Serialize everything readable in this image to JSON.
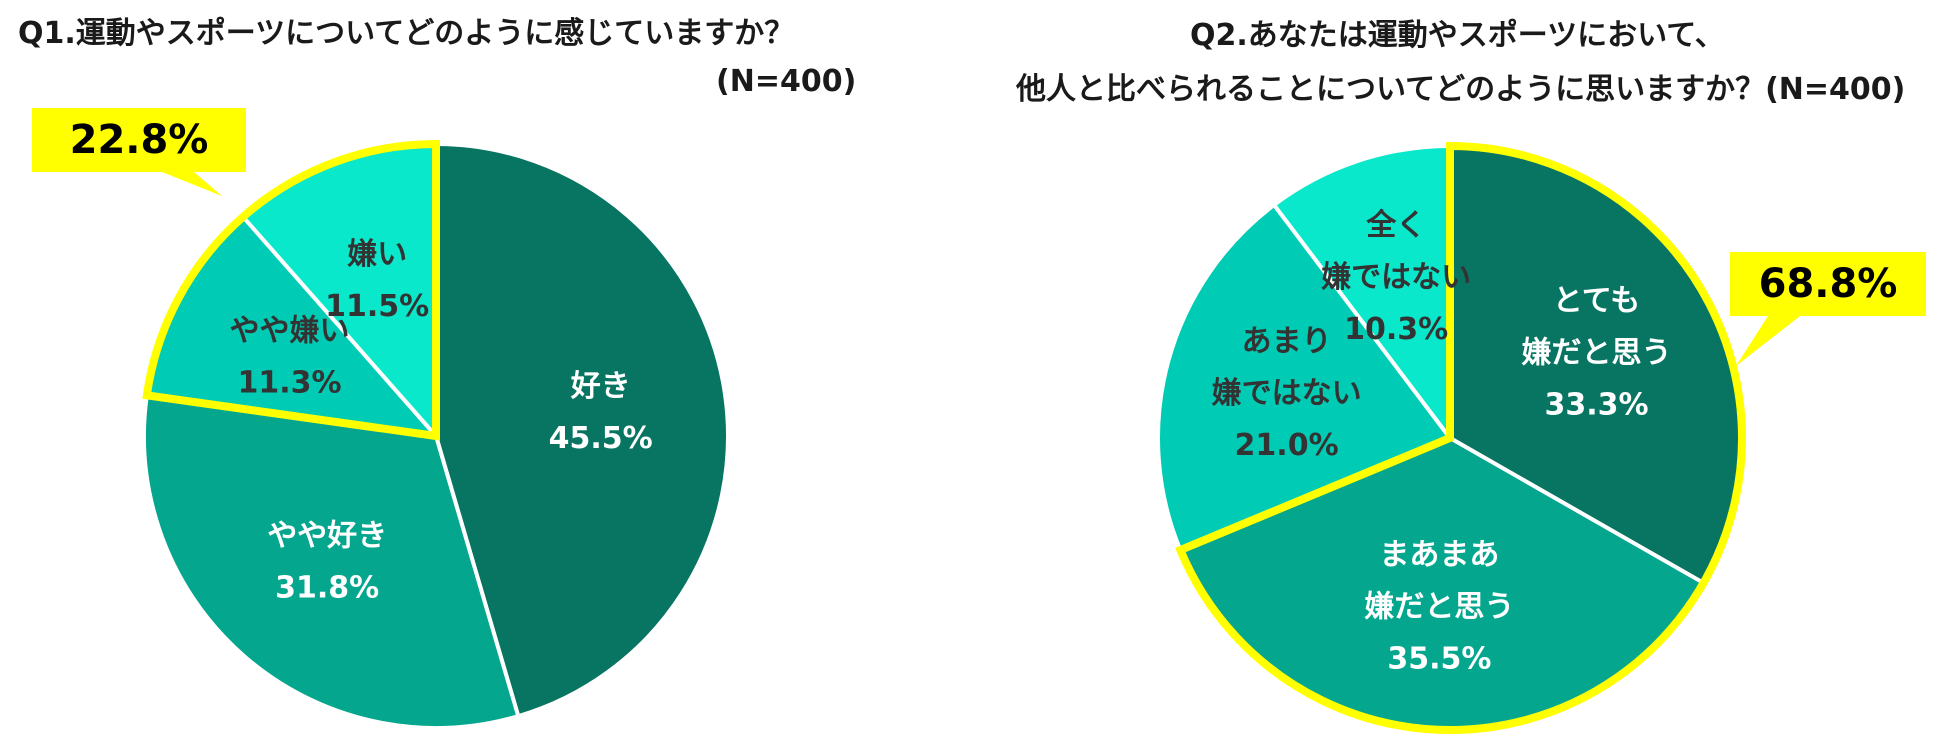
{
  "chart_data": [
    {
      "type": "pie",
      "title": "Q1.運動やスポーツについてどのように感じていますか？",
      "subtitle": "(N=400)",
      "slices": [
        {
          "label": [
            "好き"
          ],
          "value": 45.5,
          "value_label": "45.5%",
          "color": "#077561",
          "text_color": "#ffffff"
        },
        {
          "label": [
            "やや好き"
          ],
          "value": 31.8,
          "value_label": "31.8%",
          "color": "#05a68e",
          "text_color": "#ffffff"
        },
        {
          "label": [
            "やや嫌い"
          ],
          "value": 11.3,
          "value_label": "11.3%",
          "color": "#00ccb5",
          "text_color": "#333333"
        },
        {
          "label": [
            "嫌い"
          ],
          "value": 11.5,
          "value_label": "11.5%",
          "color": "#0ae8cc",
          "text_color": "#333333"
        }
      ],
      "highlight": {
        "slices": [
          2,
          3
        ],
        "callout": "22.8%",
        "color": "#ffff00"
      }
    },
    {
      "type": "pie",
      "title": "Q2.あなたは運動やスポーツにおいて、",
      "title_line2": "他人と比べられることについてどのように思いますか？(N=400)",
      "slices": [
        {
          "label": [
            "とても",
            "嫌だと思う"
          ],
          "value": 33.3,
          "value_label": "33.3%",
          "color": "#077561",
          "text_color": "#ffffff"
        },
        {
          "label": [
            "まあまあ",
            "嫌だと思う"
          ],
          "value": 35.5,
          "value_label": "35.5%",
          "color": "#05a68e",
          "text_color": "#ffffff"
        },
        {
          "label": [
            "あまり",
            "嫌ではない"
          ],
          "value": 21.0,
          "value_label": "21.0%",
          "color": "#00ccb5",
          "text_color": "#333333"
        },
        {
          "label": [
            "全く",
            "嫌ではない"
          ],
          "value": 10.3,
          "value_label": "10.3%",
          "color": "#0ae8cc",
          "text_color": "#333333"
        }
      ],
      "highlight": {
        "slices": [
          0,
          1
        ],
        "callout": "68.8%",
        "color": "#ffff00"
      }
    }
  ]
}
